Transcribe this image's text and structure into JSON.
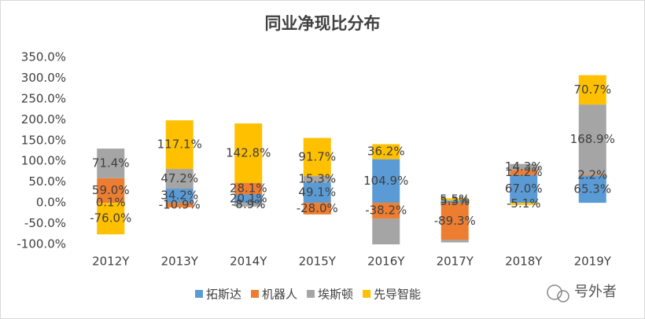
{
  "chart_data": {
    "type": "stacked_bar",
    "title": "同业净现比分布",
    "categories": [
      "2012Y",
      "2013Y",
      "2014Y",
      "2015Y",
      "2016Y",
      "2017Y",
      "2018Y",
      "2019Y"
    ],
    "series": [
      {
        "name": "拓斯达",
        "color": "#5b9bd5",
        "values": [
          0.1,
          34.2,
          20.1,
          49.1,
          104.9,
          5.3,
          67.0,
          65.3
        ],
        "value_labels": [
          "0.1%",
          "34.2%",
          "20.1%",
          "49.1%",
          "104.9%",
          "5.3%",
          "67.0%",
          "65.3%"
        ]
      },
      {
        "name": "机器人",
        "color": "#ed7d31",
        "values": [
          59.0,
          -10.9,
          28.1,
          -28.0,
          -38.2,
          -89.3,
          12.2,
          2.2
        ],
        "value_labels": [
          "59.0%",
          "-10.9%",
          "28.1%",
          "-28.0%",
          "-38.2%",
          "-89.3%",
          "12.2%",
          "2.2%"
        ]
      },
      {
        "name": "埃斯顿",
        "color": "#a5a5a5",
        "values": [
          71.4,
          47.2,
          -8.9,
          15.3,
          -70.0,
          -6.0,
          14.3,
          168.9
        ],
        "value_labels": [
          "71.4%",
          "47.2%",
          "-8.9%",
          "15.3%",
          null,
          null,
          "14.3%",
          "168.9%"
        ]
      },
      {
        "name": "先导智能",
        "color": "#ffc000",
        "values": [
          -76.0,
          117.1,
          142.8,
          91.7,
          36.2,
          5.5,
          -5.1,
          70.7
        ],
        "value_labels": [
          "-76.0%",
          "117.1%",
          "142.8%",
          "91.7%",
          "36.2%",
          "5.5%",
          "-5.1%",
          "70.7%"
        ]
      }
    ],
    "ylim": [
      -100,
      350
    ],
    "yticks": [
      {
        "value": -100,
        "label": "-100.0%"
      },
      {
        "value": -50,
        "label": "-50.0%"
      },
      {
        "value": 0,
        "label": "0.0%"
      },
      {
        "value": 50,
        "label": "50.0%"
      },
      {
        "value": 100,
        "label": "100.0%"
      },
      {
        "value": 150,
        "label": "150.0%"
      },
      {
        "value": 200,
        "label": "200.0%"
      },
      {
        "value": 250,
        "label": "250.0%"
      },
      {
        "value": 300,
        "label": "300.0%"
      },
      {
        "value": 350,
        "label": "350.0%"
      }
    ],
    "grid": false,
    "watermark": "号外者"
  }
}
